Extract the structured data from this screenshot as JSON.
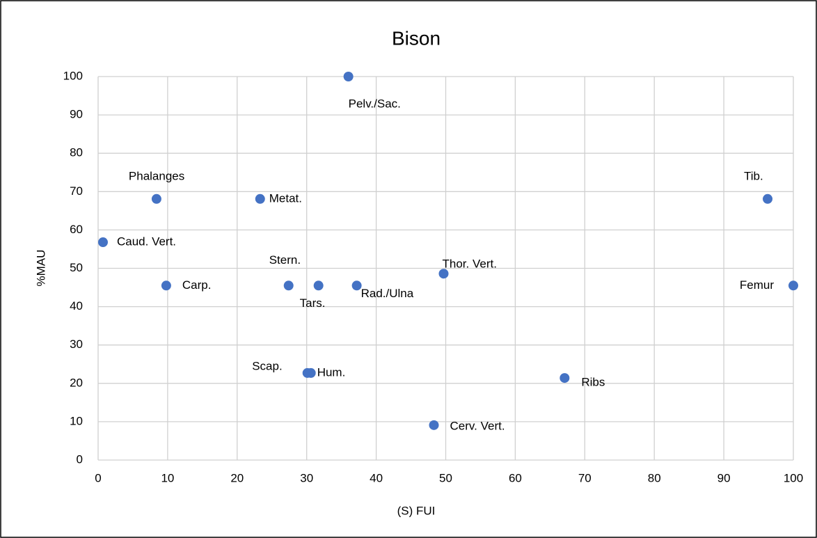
{
  "chart_data": {
    "type": "scatter",
    "title": "Bison",
    "x_label": "(S) FUI",
    "y_label": "%MAU",
    "series": [
      {
        "name": "Bison",
        "color": "#4472c4",
        "labels": [
          "Pelv./Sac.",
          "Phalanges",
          "Metat.",
          "Tib.",
          "Caud. Vert.",
          "Carp.",
          "Stern.",
          "Tars.",
          "Rad./Ulna",
          "Thor. Vert.",
          "Femur",
          "Scap.",
          "Hum.",
          "Ribs",
          "Cerv. Vert."
        ],
        "x": [
          36.0,
          8.4,
          23.3,
          96.3,
          0.7,
          9.8,
          27.4,
          31.7,
          37.2,
          49.7,
          100,
          30.1,
          30.6,
          67.1,
          48.3
        ],
        "values": [
          100,
          68.1,
          68.1,
          68.1,
          56.8,
          45.5,
          45.5,
          45.5,
          45.5,
          48.6,
          45.5,
          22.7,
          22.7,
          21.4,
          9.1
        ]
      }
    ],
    "xlim": [
      0,
      100
    ],
    "xticks": [
      0,
      10,
      20,
      30,
      40,
      50,
      60,
      70,
      80,
      90,
      100
    ],
    "ylim": [
      0,
      100
    ],
    "yticks": [
      0,
      10,
      20,
      30,
      40,
      50,
      60,
      70,
      80,
      90,
      100
    ],
    "grid": true
  }
}
